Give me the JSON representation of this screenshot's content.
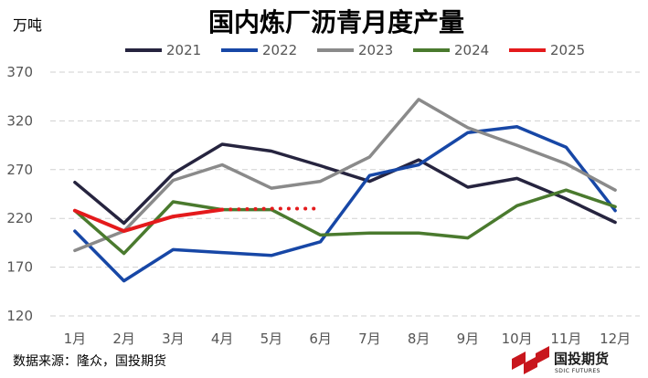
{
  "chart_data": {
    "type": "line",
    "title": "国内炼厂沥青月度产量",
    "unit": "万吨",
    "categories": [
      "1月",
      "2月",
      "3月",
      "4月",
      "5月",
      "6月",
      "7月",
      "8月",
      "9月",
      "10月",
      "11月",
      "12月"
    ],
    "ylim": [
      120,
      370
    ],
    "yticks": [
      120,
      170,
      220,
      270,
      320,
      370
    ],
    "grid": "horizontal dashed",
    "legend_position": "top",
    "series": [
      {
        "name": "2021",
        "color": "#26243f",
        "values": [
          257,
          215,
          266,
          296,
          289,
          274,
          258,
          280,
          252,
          261,
          240,
          216
        ]
      },
      {
        "name": "2022",
        "color": "#1747a6",
        "values": [
          207,
          156,
          188,
          185,
          182,
          196,
          264,
          275,
          308,
          314,
          293,
          228
        ]
      },
      {
        "name": "2023",
        "color": "#8a8a8a",
        "values": [
          187,
          207,
          259,
          275,
          251,
          258,
          283,
          342,
          313,
          295,
          276,
          249
        ]
      },
      {
        "name": "2024",
        "color": "#4a7a2e",
        "values": [
          228,
          184,
          237,
          229,
          229,
          203,
          205,
          205,
          200,
          233,
          249,
          232
        ]
      },
      {
        "name": "2025",
        "color": "#e41a1c",
        "values": [
          228,
          207,
          222,
          229,
          null,
          null,
          null,
          null,
          null,
          null,
          null,
          null
        ],
        "forecast_values": [
          null,
          null,
          null,
          229,
          230,
          230,
          null,
          null,
          null,
          null,
          null,
          null
        ]
      }
    ]
  },
  "footer": {
    "source": "数据来源：隆众，国投期货"
  },
  "logo": {
    "name_cn": "国投期货",
    "name_en": "SDIC FUTURES",
    "color": "#c8161d"
  }
}
